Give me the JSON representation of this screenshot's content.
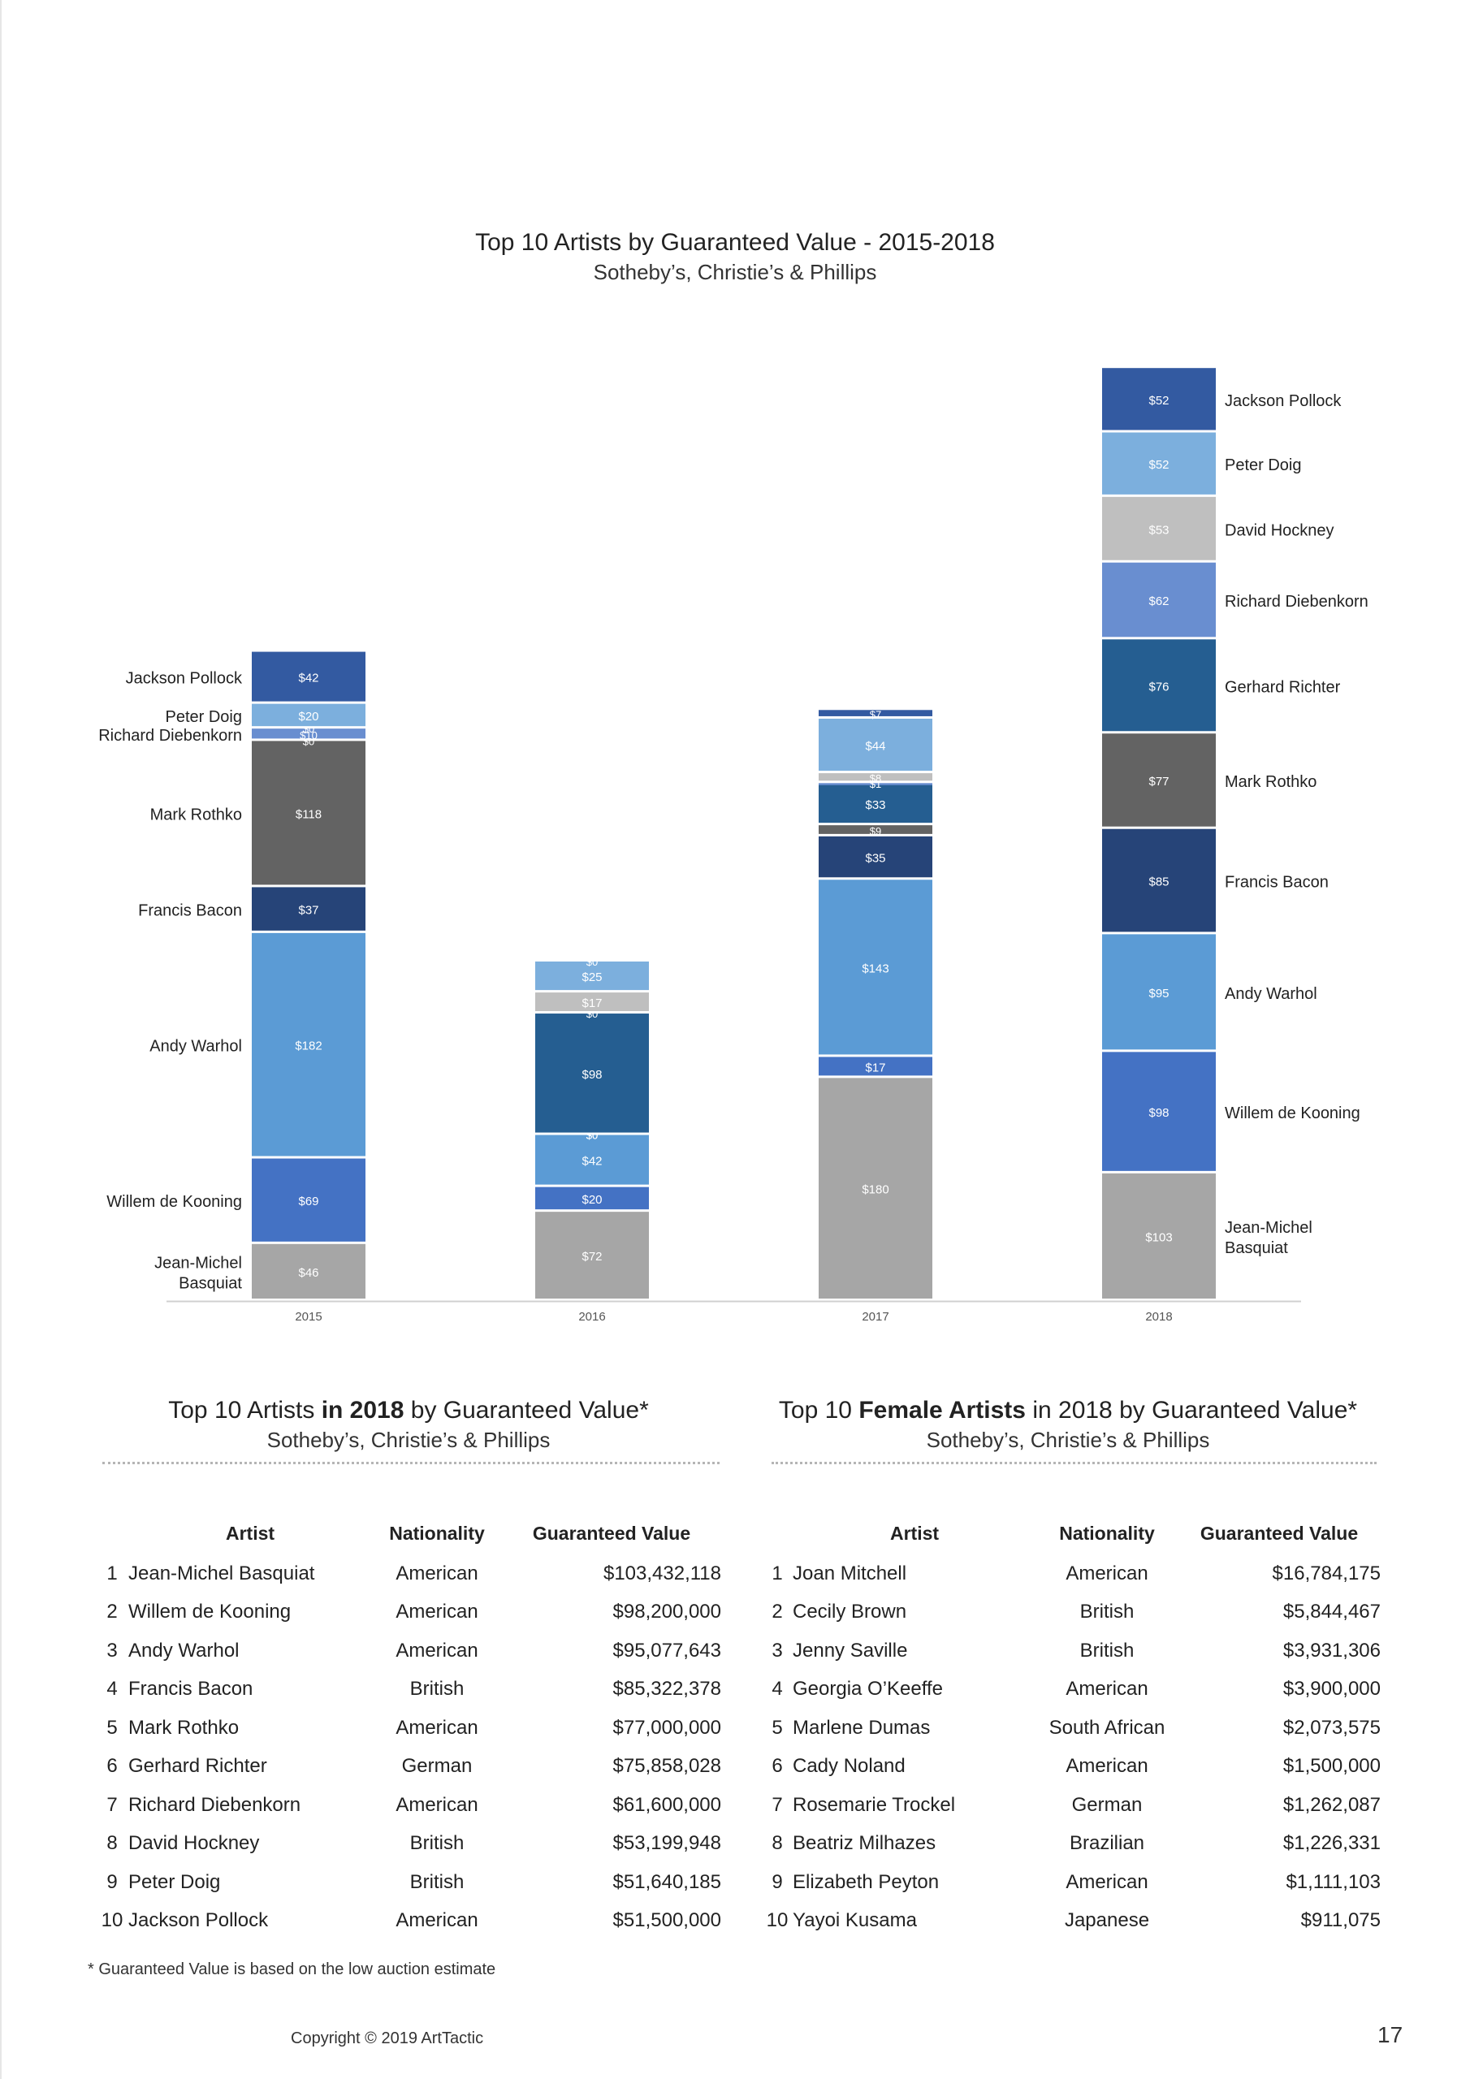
{
  "chart_data": {
    "type": "bar",
    "stacked": true,
    "title": "Top 10 Artists by Guaranteed Value - 2015-2018",
    "subtitle": "Sotheby’s, Christie’s & Phillips",
    "categories": [
      "2015",
      "2016",
      "2017",
      "2018"
    ],
    "series": [
      {
        "name": "Jean-Michel Basquiat",
        "label": "Jean-Michel Basquiat",
        "color": "#a6a6a6",
        "values": [
          46,
          72,
          180,
          103
        ],
        "value_labels": [
          "$46",
          "$72",
          "$180",
          "$103"
        ]
      },
      {
        "name": "Willem de Kooning",
        "label": "Willem de Kooning",
        "color": "#4472c4",
        "values": [
          69,
          20,
          17,
          98
        ],
        "value_labels": [
          "$69",
          "$20",
          "$17",
          "$98"
        ]
      },
      {
        "name": "Andy Warhol",
        "label": "Andy Warhol",
        "color": "#5b9bd5",
        "values": [
          182,
          42,
          143,
          95
        ],
        "value_labels": [
          "$182",
          "$42",
          "$143",
          "$95"
        ]
      },
      {
        "name": "Francis Bacon",
        "label": "Francis Bacon",
        "color": "#264478",
        "values": [
          37,
          0,
          35,
          85
        ],
        "value_labels": [
          "$37",
          "$0",
          "$35",
          "$85"
        ]
      },
      {
        "name": "Mark Rothko",
        "label": "Mark Rothko",
        "color": "#636363",
        "values": [
          118,
          0,
          9,
          77
        ],
        "value_labels": [
          "$118",
          "$0",
          "$9",
          "$77"
        ]
      },
      {
        "name": "Gerhard Richter",
        "label": "Gerhard Richter",
        "color": "#255e91",
        "values": [
          0,
          98,
          33,
          76
        ],
        "value_labels": [
          "$0",
          "$98",
          "$33",
          "$76"
        ]
      },
      {
        "name": "Richard Diebenkorn",
        "label": "Richard Diebenkorn",
        "color": "#698ed0",
        "values": [
          10,
          0,
          1,
          62
        ],
        "value_labels": [
          "$10",
          "$0",
          "$1",
          "$62"
        ]
      },
      {
        "name": "David Hockney",
        "label": "David Hockney",
        "color": "#bfbfbf",
        "values": [
          0,
          17,
          8,
          53
        ],
        "value_labels": [
          "$0",
          "$17",
          "$8",
          "$53"
        ]
      },
      {
        "name": "Peter Doig",
        "label": "Peter Doig",
        "color": "#7cafdd",
        "values": [
          20,
          25,
          44,
          52
        ],
        "value_labels": [
          "$20",
          "$25",
          "$44",
          "$52"
        ]
      },
      {
        "name": "Jackson Pollock",
        "label": "Jackson Pollock",
        "color": "#335aa1",
        "values": [
          42,
          0,
          7,
          52
        ],
        "value_labels": [
          "$42",
          "$0",
          "$7",
          "$52"
        ]
      }
    ],
    "ylim": [
      0,
      780
    ],
    "xlabel": "",
    "ylabel": "",
    "grid": false,
    "legend": "series labels on left of 2015 bar and right of 2018 bar"
  },
  "table_2018": {
    "title_pre": "Top 10 Artists ",
    "title_bold": "in 2018",
    "title_post": " by Guaranteed Value*",
    "subtitle": "Sotheby’s, Christie’s & Phillips",
    "headers": {
      "artist": "Artist",
      "nationality": "Nationality",
      "value": "Guaranteed Value"
    },
    "rows": [
      {
        "rank": "1",
        "artist": "Jean-Michel Basquiat",
        "nationality": "American",
        "value": "$103,432,118"
      },
      {
        "rank": "2",
        "artist": "Willem de Kooning",
        "nationality": "American",
        "value": "$98,200,000"
      },
      {
        "rank": "3",
        "artist": "Andy Warhol",
        "nationality": "American",
        "value": "$95,077,643"
      },
      {
        "rank": "4",
        "artist": "Francis Bacon",
        "nationality": "British",
        "value": "$85,322,378"
      },
      {
        "rank": "5",
        "artist": "Mark Rothko",
        "nationality": "American",
        "value": "$77,000,000"
      },
      {
        "rank": "6",
        "artist": "Gerhard Richter",
        "nationality": "German",
        "value": "$75,858,028"
      },
      {
        "rank": "7",
        "artist": "Richard Diebenkorn",
        "nationality": "American",
        "value": "$61,600,000"
      },
      {
        "rank": "8",
        "artist": "David Hockney",
        "nationality": "British",
        "value": "$53,199,948"
      },
      {
        "rank": "9",
        "artist": "Peter Doig",
        "nationality": "British",
        "value": "$51,640,185"
      },
      {
        "rank": "10",
        "artist": "Jackson Pollock",
        "nationality": "American",
        "value": "$51,500,000"
      }
    ]
  },
  "table_female": {
    "title_pre": "Top 10 ",
    "title_bold": "Female Artists",
    "title_post": " in 2018 by Guaranteed Value*",
    "subtitle": "Sotheby’s, Christie’s & Phillips",
    "headers": {
      "artist": "Artist",
      "nationality": "Nationality",
      "value": "Guaranteed Value"
    },
    "rows": [
      {
        "rank": "1",
        "artist": "Joan Mitchell",
        "nationality": "American",
        "value": "$16,784,175"
      },
      {
        "rank": "2",
        "artist": "Cecily Brown",
        "nationality": "British",
        "value": "$5,844,467"
      },
      {
        "rank": "3",
        "artist": "Jenny Saville",
        "nationality": "British",
        "value": "$3,931,306"
      },
      {
        "rank": "4",
        "artist": "Georgia O’Keeffe",
        "nationality": "American",
        "value": "$3,900,000"
      },
      {
        "rank": "5",
        "artist": "Marlene Dumas",
        "nationality": "South African",
        "value": "$2,073,575"
      },
      {
        "rank": "6",
        "artist": "Cady Noland",
        "nationality": "American",
        "value": "$1,500,000"
      },
      {
        "rank": "7",
        "artist": "Rosemarie Trockel",
        "nationality": "German",
        "value": "$1,262,087"
      },
      {
        "rank": "8",
        "artist": "Beatriz Milhazes",
        "nationality": "Brazilian",
        "value": "$1,226,331"
      },
      {
        "rank": "9",
        "artist": "Elizabeth Peyton",
        "nationality": "American",
        "value": "$1,111,103"
      },
      {
        "rank": "10",
        "artist": "Yayoi Kusama",
        "nationality": "Japanese",
        "value": "$911,075"
      }
    ]
  },
  "footnote": "* Guaranteed Value is based on the low auction estimate",
  "copyright": "Copyright © 2019 ArtTactic",
  "page_number": "17"
}
